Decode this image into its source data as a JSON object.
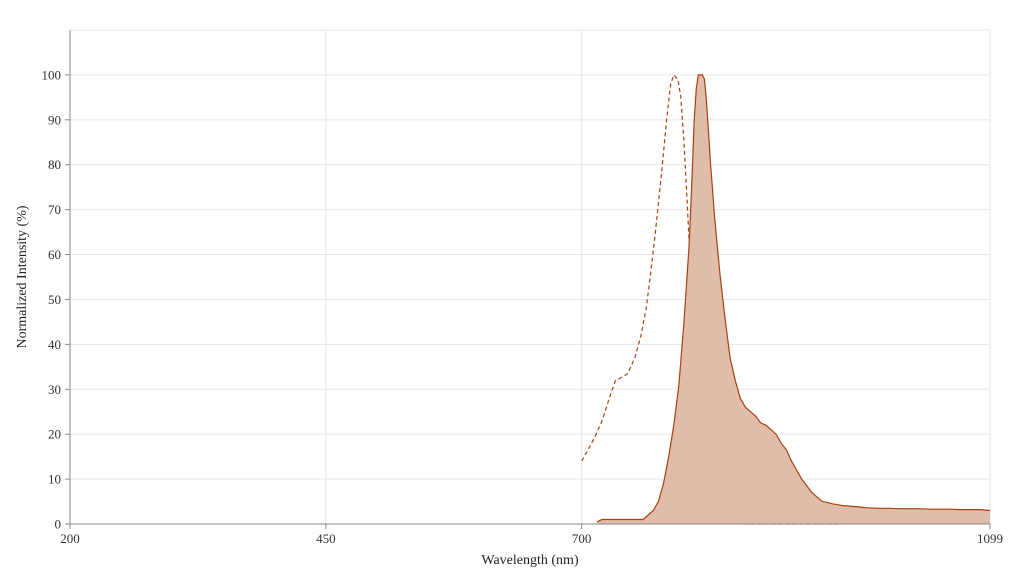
{
  "chart_data": {
    "type": "area",
    "xlabel": "Wavelength (nm)",
    "ylabel": "Normalized Intensity (%)",
    "xlim": [
      200,
      1099
    ],
    "ylim": [
      0,
      110
    ],
    "x_ticks": [
      200,
      450,
      700,
      1099
    ],
    "y_ticks": [
      0,
      10,
      20,
      30,
      40,
      50,
      60,
      70,
      80,
      90,
      100
    ],
    "grid": true,
    "legend": "none",
    "colors": {
      "line": "#a8400f",
      "fill": "#e0bdaa"
    },
    "series": [
      {
        "style": "dashed",
        "fill": false,
        "x": [
          700,
          705,
          712,
          720,
          727,
          733,
          738,
          745,
          752,
          758,
          763,
          767,
          772,
          778,
          783,
          787,
          790,
          794,
          797,
          800,
          803,
          806,
          809,
          812,
          815,
          818,
          822,
          826,
          830,
          834,
          838,
          842,
          846,
          850,
          855,
          860,
          868,
          876,
          885,
          900,
          920,
          950
        ],
        "y": [
          14,
          16,
          19,
          23,
          28,
          32,
          32.5,
          33.5,
          37,
          42,
          48,
          55,
          65,
          78,
          90,
          98,
          100,
          99,
          95,
          85,
          72,
          58,
          45,
          34,
          25,
          17,
          12,
          8,
          5,
          3,
          2,
          1,
          0.5,
          0.3,
          0.1,
          0,
          0,
          0,
          0,
          0,
          0,
          0
        ]
      },
      {
        "style": "solid",
        "fill": true,
        "x": [
          715,
          720,
          730,
          740,
          750,
          755,
          760,
          765,
          770,
          775,
          780,
          785,
          790,
          795,
          800,
          805,
          808,
          810,
          812,
          814,
          816,
          818,
          820,
          822,
          824,
          826,
          828,
          830,
          835,
          840,
          845,
          850,
          855,
          860,
          865,
          870,
          875,
          880,
          885,
          890,
          895,
          900,
          905,
          910,
          915,
          920,
          925,
          930,
          935,
          940,
          945,
          950,
          955,
          960,
          970,
          980,
          990,
          1000,
          1010,
          1020,
          1030,
          1040,
          1050,
          1060,
          1070,
          1080,
          1090,
          1099
        ],
        "y": [
          0.5,
          1,
          1,
          1,
          1,
          1,
          1,
          2,
          3,
          5,
          9,
          15,
          22,
          31,
          45,
          62,
          78,
          90,
          97,
          100,
          100,
          100,
          99,
          94,
          87,
          80,
          74,
          68,
          56,
          46,
          37,
          32,
          28,
          26,
          25,
          24,
          22.5,
          22,
          21,
          20,
          18,
          16.5,
          14,
          12,
          10,
          8.5,
          7,
          6,
          5,
          4.8,
          4.5,
          4.3,
          4.1,
          4,
          3.8,
          3.6,
          3.5,
          3.5,
          3.4,
          3.4,
          3.4,
          3.3,
          3.3,
          3.3,
          3.2,
          3.2,
          3.2,
          3
        ]
      }
    ]
  }
}
